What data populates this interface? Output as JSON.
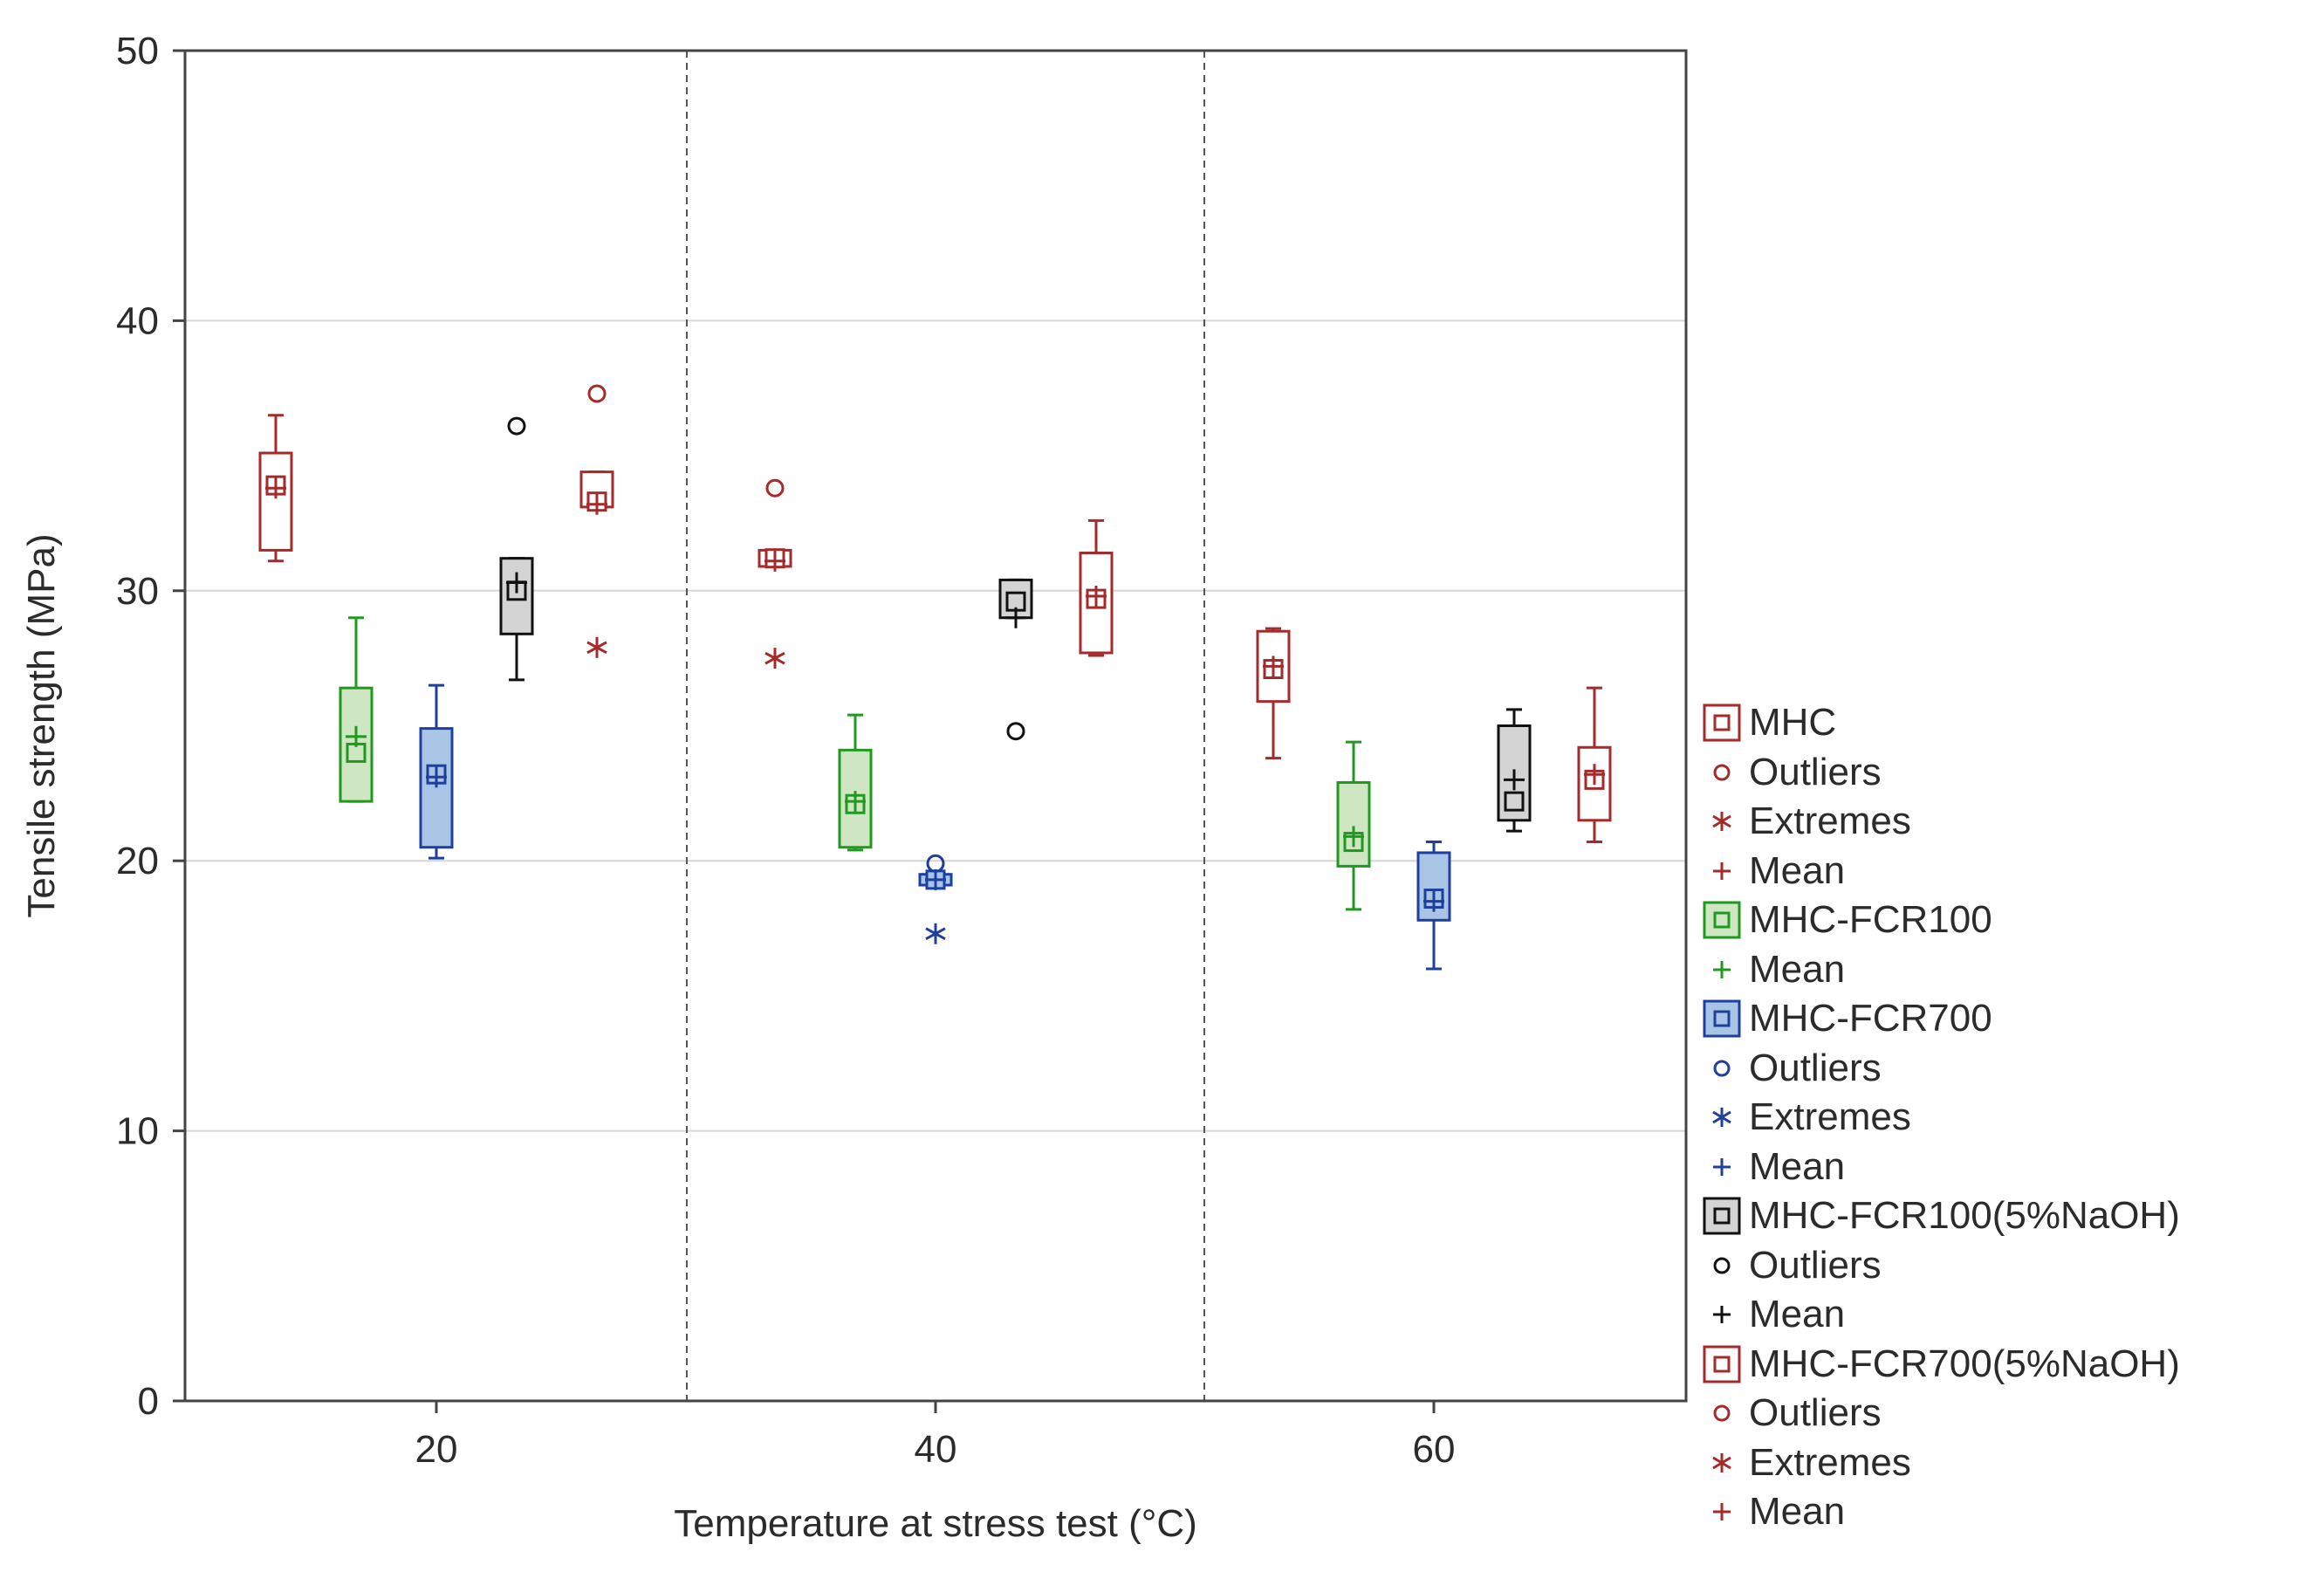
{
  "chart_data": {
    "type": "box",
    "xlabel": "Temperature at stress test (°C)",
    "ylabel": "Tensile strength (MPa)",
    "ylim": [
      0,
      50
    ],
    "y_ticks": [
      0,
      10,
      20,
      30,
      40,
      50
    ],
    "categories": [
      "20",
      "40",
      "60"
    ],
    "grid": true,
    "series": [
      {
        "name": "MHC",
        "color": "#a52a2a",
        "fill": "#ffffff",
        "boxes": [
          {
            "category": "20",
            "median": 33.9,
            "q1": 31.5,
            "q3": 35.1,
            "min": 31.1,
            "max": 36.5,
            "mean": 33.8,
            "outliers": [],
            "extremes": []
          },
          {
            "category": "40",
            "median": 31.2,
            "q1": 30.9,
            "q3": 31.5,
            "min": 30.9,
            "max": 31.5,
            "mean": 31.1,
            "outliers": [
              33.8
            ],
            "extremes": [
              27.5
            ]
          },
          {
            "category": "60",
            "median": 27.1,
            "q1": 25.9,
            "q3": 28.5,
            "min": 23.8,
            "max": 28.6,
            "mean": 27.2,
            "outliers": [],
            "extremes": []
          }
        ]
      },
      {
        "name": "MHC-FCR100",
        "color": "#1f9a1f",
        "fill": "#cfe6c2",
        "boxes": [
          {
            "category": "20",
            "median": 24.0,
            "q1": 22.2,
            "q3": 26.4,
            "min": 22.2,
            "max": 29.0,
            "mean": 24.6,
            "outliers": [],
            "extremes": []
          },
          {
            "category": "40",
            "median": 22.1,
            "q1": 20.5,
            "q3": 24.1,
            "min": 20.4,
            "max": 25.4,
            "mean": 22.2,
            "outliers": [],
            "extremes": []
          },
          {
            "category": "60",
            "median": 20.7,
            "q1": 19.8,
            "q3": 22.9,
            "min": 18.2,
            "max": 24.4,
            "mean": 20.9,
            "outliers": [],
            "extremes": []
          }
        ]
      },
      {
        "name": "MHC-FCR700",
        "color": "#1f3f9f",
        "fill": "#a9c5e6",
        "boxes": [
          {
            "category": "20",
            "median": 23.2,
            "q1": 20.5,
            "q3": 24.9,
            "min": 20.1,
            "max": 26.5,
            "mean": 23.1,
            "outliers": [],
            "extremes": []
          },
          {
            "category": "40",
            "median": 19.3,
            "q1": 19.1,
            "q3": 19.5,
            "min": 19.1,
            "max": 19.5,
            "mean": 19.3,
            "outliers": [
              19.9
            ],
            "extremes": [
              17.3
            ]
          },
          {
            "category": "60",
            "median": 18.6,
            "q1": 17.8,
            "q3": 20.3,
            "min": 16.0,
            "max": 20.7,
            "mean": 18.5,
            "outliers": [],
            "extremes": []
          }
        ]
      },
      {
        "name": "MHC-FCR100(5%NaOH)",
        "color": "#111111",
        "fill": "#d4d4d4",
        "boxes": [
          {
            "category": "20",
            "median": 30.0,
            "q1": 28.4,
            "q3": 31.2,
            "min": 26.7,
            "max": 31.2,
            "mean": 30.3,
            "outliers": [
              36.1
            ],
            "extremes": []
          },
          {
            "category": "40",
            "median": 29.6,
            "q1": 29.0,
            "q3": 30.4,
            "min": 29.0,
            "max": 30.4,
            "mean": 29.0,
            "outliers": [
              24.8
            ],
            "extremes": []
          },
          {
            "category": "60",
            "median": 22.2,
            "q1": 21.5,
            "q3": 25.0,
            "min": 21.1,
            "max": 25.6,
            "mean": 23.0,
            "outliers": [],
            "extremes": []
          }
        ]
      },
      {
        "name": "MHC-FCR700(5%NaOH)",
        "color": "#a52a2a",
        "fill": "#ffffff",
        "boxes": [
          {
            "category": "20",
            "median": 33.3,
            "q1": 33.1,
            "q3": 34.4,
            "min": 33.1,
            "max": 34.4,
            "mean": 33.2,
            "outliers": [
              37.3
            ],
            "extremes": [
              27.9
            ]
          },
          {
            "category": "40",
            "median": 29.7,
            "q1": 27.7,
            "q3": 31.4,
            "min": 27.6,
            "max": 32.6,
            "mean": 29.8,
            "outliers": [],
            "extremes": []
          },
          {
            "category": "60",
            "median": 23.0,
            "q1": 21.5,
            "q3": 24.2,
            "min": 20.7,
            "max": 26.4,
            "mean": 23.2,
            "outliers": [],
            "extremes": []
          }
        ]
      }
    ]
  },
  "legend": [
    {
      "label": "MHC",
      "kind": "box",
      "color": "#a52a2a",
      "fill": "#ffffff"
    },
    {
      "label": "Outliers",
      "kind": "outlier",
      "color": "#a52a2a"
    },
    {
      "label": "Extremes",
      "kind": "extreme",
      "color": "#a52a2a"
    },
    {
      "label": "Mean",
      "kind": "mean",
      "color": "#a52a2a"
    },
    {
      "label": "MHC-FCR100",
      "kind": "box",
      "color": "#1f9a1f",
      "fill": "#cfe6c2"
    },
    {
      "label": "Mean",
      "kind": "mean",
      "color": "#1f9a1f"
    },
    {
      "label": "MHC-FCR700",
      "kind": "box",
      "color": "#1f3f9f",
      "fill": "#a9c5e6"
    },
    {
      "label": "Outliers",
      "kind": "outlier",
      "color": "#1f3f9f"
    },
    {
      "label": "Extremes",
      "kind": "extreme",
      "color": "#1f3f9f"
    },
    {
      "label": "Mean",
      "kind": "mean",
      "color": "#1f3f9f"
    },
    {
      "label": "MHC-FCR100(5%NaOH)",
      "kind": "box",
      "color": "#111111",
      "fill": "#d4d4d4"
    },
    {
      "label": "Outliers",
      "kind": "outlier",
      "color": "#111111"
    },
    {
      "label": "Mean",
      "kind": "mean",
      "color": "#111111"
    },
    {
      "label": "MHC-FCR700(5%NaOH)",
      "kind": "box",
      "color": "#a52a2a",
      "fill": "#ffffff"
    },
    {
      "label": "Outliers",
      "kind": "outlier",
      "color": "#a52a2a"
    },
    {
      "label": "Extremes",
      "kind": "extreme",
      "color": "#a52a2a"
    },
    {
      "label": "Mean",
      "kind": "mean",
      "color": "#a52a2a"
    }
  ]
}
